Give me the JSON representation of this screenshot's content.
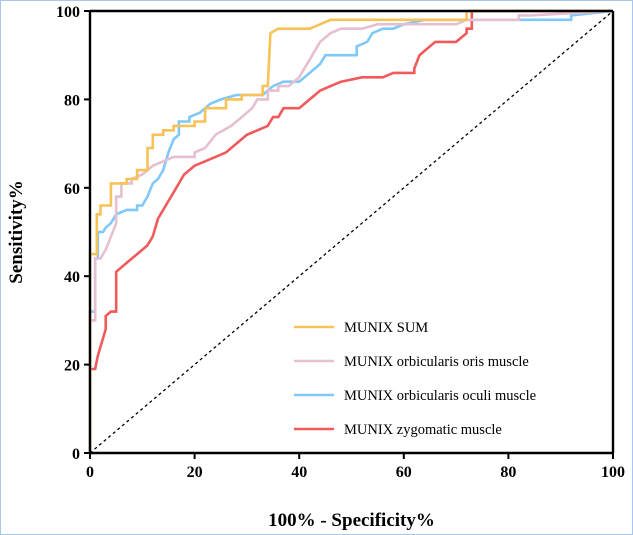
{
  "chart_data": {
    "type": "line",
    "title": "",
    "xlabel": "100% - Specificity%",
    "ylabel": "Sensitivity%",
    "xlim": [
      0,
      100
    ],
    "ylim": [
      0,
      100
    ],
    "x_ticks": [
      "0",
      "20",
      "40",
      "60",
      "80",
      "100"
    ],
    "y_ticks": [
      "0",
      "20",
      "40",
      "60",
      "80",
      "100"
    ],
    "grid": false,
    "legend_position": "bottom-right",
    "reference_line": {
      "style": "dashed",
      "from": [
        0,
        0
      ],
      "to": [
        100,
        100
      ]
    },
    "series": [
      {
        "name": "MUNIX SUM",
        "color": "#f7c257",
        "points": [
          [
            0,
            0
          ],
          [
            0,
            45
          ],
          [
            1.3,
            45
          ],
          [
            1.3,
            54
          ],
          [
            2,
            54
          ],
          [
            2,
            56
          ],
          [
            4,
            56
          ],
          [
            4,
            61
          ],
          [
            7,
            61
          ],
          [
            7,
            62
          ],
          [
            9,
            62
          ],
          [
            9,
            64
          ],
          [
            11,
            64
          ],
          [
            11,
            69
          ],
          [
            12,
            69
          ],
          [
            12,
            72
          ],
          [
            14,
            72
          ],
          [
            14,
            73
          ],
          [
            16,
            73
          ],
          [
            16,
            74
          ],
          [
            20,
            74
          ],
          [
            20,
            75
          ],
          [
            22,
            75
          ],
          [
            22,
            78
          ],
          [
            26,
            78
          ],
          [
            26,
            80
          ],
          [
            29,
            80
          ],
          [
            29,
            81
          ],
          [
            33,
            81
          ],
          [
            33,
            83
          ],
          [
            34,
            83
          ],
          [
            34.5,
            95
          ],
          [
            36,
            96
          ],
          [
            42,
            96
          ],
          [
            44,
            97
          ],
          [
            46,
            98
          ],
          [
            62,
            98
          ],
          [
            72,
            98
          ],
          [
            72,
            100
          ],
          [
            100,
            100
          ]
        ]
      },
      {
        "name": "MUNIX orbicularis oris muscle",
        "color": "#e6bfd1",
        "points": [
          [
            0,
            0
          ],
          [
            0,
            30
          ],
          [
            1,
            30
          ],
          [
            1,
            44
          ],
          [
            2,
            44
          ],
          [
            3,
            46
          ],
          [
            5,
            52
          ],
          [
            5,
            58
          ],
          [
            6,
            58
          ],
          [
            6,
            61
          ],
          [
            8,
            61
          ],
          [
            8,
            62
          ],
          [
            10,
            63
          ],
          [
            12,
            65
          ],
          [
            14,
            66
          ],
          [
            16,
            67
          ],
          [
            20,
            67
          ],
          [
            20,
            68
          ],
          [
            22,
            69
          ],
          [
            24,
            72
          ],
          [
            27,
            74
          ],
          [
            29,
            76
          ],
          [
            31,
            78
          ],
          [
            32,
            80
          ],
          [
            34,
            80
          ],
          [
            34,
            82
          ],
          [
            36,
            82
          ],
          [
            36,
            83
          ],
          [
            38,
            83
          ],
          [
            40,
            85
          ],
          [
            42,
            89
          ],
          [
            44,
            93
          ],
          [
            46,
            95
          ],
          [
            48,
            96
          ],
          [
            52,
            96
          ],
          [
            55,
            97
          ],
          [
            70,
            97
          ],
          [
            72,
            98
          ],
          [
            82,
            98
          ],
          [
            82,
            99
          ],
          [
            84,
            99
          ],
          [
            100,
            100
          ]
        ]
      },
      {
        "name": "MUNIX orbicularis oculi muscle",
        "color": "#7fc8f8",
        "points": [
          [
            0,
            0
          ],
          [
            0,
            32
          ],
          [
            1,
            32
          ],
          [
            1,
            44
          ],
          [
            1.5,
            44
          ],
          [
            1.5,
            50
          ],
          [
            2.5,
            50
          ],
          [
            3,
            51
          ],
          [
            4,
            52
          ],
          [
            5,
            54
          ],
          [
            7,
            55
          ],
          [
            9,
            55
          ],
          [
            9,
            56
          ],
          [
            10,
            56
          ],
          [
            11,
            58
          ],
          [
            12,
            61
          ],
          [
            13,
            62
          ],
          [
            14,
            64
          ],
          [
            15,
            68
          ],
          [
            16,
            71
          ],
          [
            17,
            72
          ],
          [
            17,
            75
          ],
          [
            19,
            75
          ],
          [
            19,
            76
          ],
          [
            21,
            77
          ],
          [
            23,
            79
          ],
          [
            25,
            80
          ],
          [
            28,
            81
          ],
          [
            33,
            81
          ],
          [
            34,
            82
          ],
          [
            35,
            83
          ],
          [
            37,
            84
          ],
          [
            40,
            84
          ],
          [
            42,
            86
          ],
          [
            44,
            88
          ],
          [
            45,
            90
          ],
          [
            51,
            90
          ],
          [
            51,
            92
          ],
          [
            53,
            93
          ],
          [
            54,
            95
          ],
          [
            56,
            96
          ],
          [
            58,
            96
          ],
          [
            60,
            97
          ],
          [
            64,
            98
          ],
          [
            92,
            98
          ],
          [
            92,
            99
          ],
          [
            100,
            100
          ]
        ]
      },
      {
        "name": "MUNIX zygomatic muscle",
        "color": "#f15a5a",
        "points": [
          [
            0,
            0
          ],
          [
            0,
            19
          ],
          [
            1,
            19
          ],
          [
            1.5,
            22
          ],
          [
            3,
            28
          ],
          [
            3,
            31
          ],
          [
            4,
            32
          ],
          [
            5,
            32
          ],
          [
            5,
            41
          ],
          [
            7,
            43
          ],
          [
            9,
            45
          ],
          [
            10,
            46
          ],
          [
            11,
            47
          ],
          [
            12,
            49
          ],
          [
            13,
            53
          ],
          [
            14,
            55
          ],
          [
            15,
            57
          ],
          [
            16,
            59
          ],
          [
            17,
            61
          ],
          [
            18,
            63
          ],
          [
            20,
            65
          ],
          [
            22,
            66
          ],
          [
            24,
            67
          ],
          [
            26,
            68
          ],
          [
            28,
            70
          ],
          [
            30,
            72
          ],
          [
            32,
            73
          ],
          [
            34,
            74
          ],
          [
            35,
            76
          ],
          [
            36,
            76
          ],
          [
            37,
            78
          ],
          [
            40,
            78
          ],
          [
            42,
            80
          ],
          [
            44,
            82
          ],
          [
            46,
            83
          ],
          [
            48,
            84
          ],
          [
            52,
            85
          ],
          [
            56,
            85
          ],
          [
            58,
            86
          ],
          [
            62,
            86
          ],
          [
            62,
            87
          ],
          [
            63,
            90
          ],
          [
            64,
            91
          ],
          [
            66,
            93
          ],
          [
            70,
            93
          ],
          [
            72,
            95
          ],
          [
            72,
            96
          ],
          [
            73,
            96
          ],
          [
            73,
            100
          ],
          [
            100,
            100
          ]
        ]
      }
    ]
  }
}
